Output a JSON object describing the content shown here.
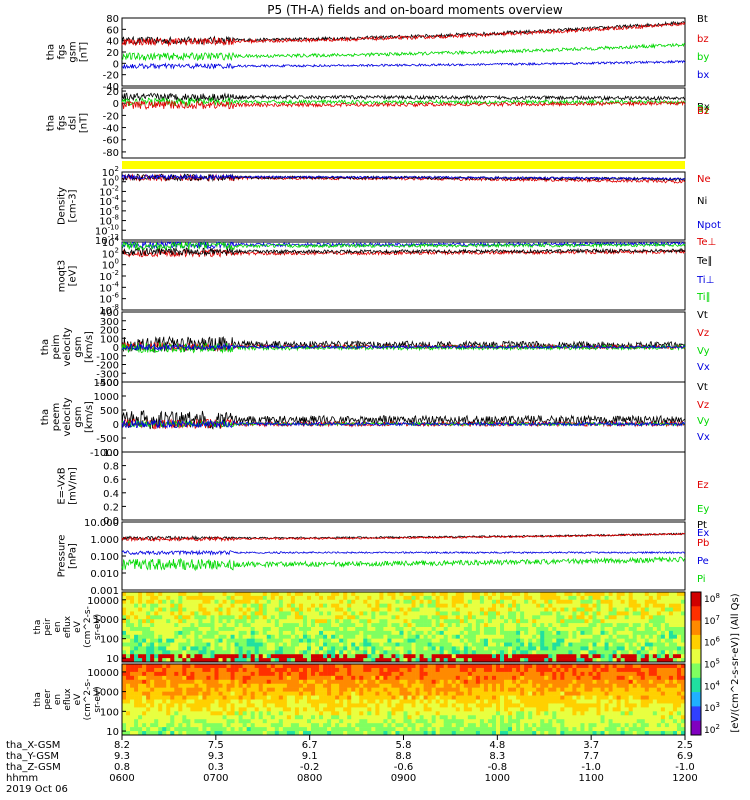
{
  "title": "P5 (TH-A) fields and on-board moments overview",
  "colors": {
    "black": "#000000",
    "red": "#e00000",
    "green": "#00d800",
    "blue": "#0000e0",
    "yellow": "#ffff00"
  },
  "chart_data": {
    "type": "line",
    "time": {
      "ticks": [
        "0600",
        "0700",
        "0800",
        "0900",
        "1000",
        "1100",
        "1200"
      ],
      "range_hours": [
        6,
        12
      ],
      "date_label": "2019 Oct 06",
      "ephemeris": [
        {
          "name": "tha_X-GSM",
          "values": [
            "8.2",
            "7.5",
            "6.7",
            "5.8",
            "4.8",
            "3.7",
            "2.5"
          ]
        },
        {
          "name": "tha_Y-GSM",
          "values": [
            "9.3",
            "9.3",
            "9.1",
            "8.8",
            "8.3",
            "7.7",
            "6.9"
          ]
        },
        {
          "name": "tha_Z-GSM",
          "values": [
            "0.8",
            "0.3",
            "-0.2",
            "-0.6",
            "-0.8",
            "-1.0",
            "-1.0"
          ]
        },
        {
          "name": "hhmm",
          "values": []
        }
      ]
    },
    "panels": [
      {
        "id": "fgs-gsm",
        "ylabel_lines": [
          "tha",
          "fgs",
          "gsm",
          "[nT]"
        ],
        "ticks": [
          "80",
          "60",
          "40",
          "20",
          "0",
          "-20",
          "-40"
        ],
        "ylim": [
          -40,
          80
        ],
        "series": [
          {
            "name": "Bt",
            "color": "#000000",
            "start": 40,
            "end": 72,
            "noise": 3
          },
          {
            "name": "bz",
            "color": "#e00000",
            "start": 38,
            "end": 70,
            "noise": 3
          },
          {
            "name": "by",
            "color": "#00d800",
            "start": 12,
            "end": 33,
            "noise": 3
          },
          {
            "name": "bx",
            "color": "#0000e0",
            "start": -5,
            "end": 3,
            "noise": 2
          }
        ]
      },
      {
        "id": "fgs-dsl",
        "ylabel_lines": [
          "tha",
          "fgs",
          "dsl",
          "[nT]"
        ],
        "ticks": [
          "20",
          "0",
          "-20",
          "-40",
          "-60",
          "-80"
        ],
        "ylim": [
          -90,
          25
        ],
        "series": [
          {
            "name": "Bx",
            "color": "#000000",
            "start": 10,
            "end": 8,
            "noise": 3
          },
          {
            "name": "By",
            "color": "#00d800",
            "start": 2,
            "end": 2,
            "noise": 3
          },
          {
            "name": "Bz",
            "color": "#e00000",
            "start": -3,
            "end": 0,
            "noise": 3
          }
        ]
      },
      {
        "id": "density",
        "ylabel_lines": [
          "Density",
          "[cm-3]"
        ],
        "log": true,
        "tick_exps": [
          2,
          0,
          -2,
          -4,
          -6,
          -8,
          -10,
          -12
        ],
        "ylim": [
          -12,
          2
        ],
        "series": [
          {
            "name": "Ne",
            "color": "#e00000",
            "start": 0.8,
            "end": 0.0,
            "noise": 0.3
          },
          {
            "name": "Ni",
            "color": "#000000",
            "start": 0.9,
            "end": 0.5,
            "noise": 0.3
          },
          {
            "name": "Npot",
            "color": "#0000e0",
            "start": 1.0,
            "end": 0.6,
            "noise": 0.2
          }
        ]
      },
      {
        "id": "temperature",
        "ylabel_lines": [
          "moqt3",
          "[eV]"
        ],
        "log": true,
        "tick_exps": [
          4,
          2,
          0,
          -2,
          -4,
          -6,
          -8
        ],
        "ylim": [
          -8,
          4
        ],
        "series": [
          {
            "name": "Te⊥",
            "color": "#e00000",
            "start": 2.0,
            "end": 2.3,
            "noise": 0.3
          },
          {
            "name": "Te∥",
            "color": "#000000",
            "start": 2.3,
            "end": 2.5,
            "noise": 0.3
          },
          {
            "name": "Ti⊥",
            "color": "#0000e0",
            "start": 3.5,
            "end": 3.7,
            "noise": 0.3
          },
          {
            "name": "Ti∥",
            "color": "#00d800",
            "start": 3.3,
            "end": 3.5,
            "noise": 0.3
          }
        ]
      },
      {
        "id": "peim-velocity",
        "ylabel_lines": [
          "tha",
          "peim",
          "velocity",
          "gsm",
          "[km/s]"
        ],
        "ticks": [
          "400",
          "300",
          "200",
          "100",
          "0",
          "-100",
          "-200",
          "-300",
          "-400"
        ],
        "ylim": [
          -400,
          400
        ],
        "series": [
          {
            "name": "Vt",
            "color": "#000000",
            "start": 30,
            "end": 20,
            "noise": 40
          },
          {
            "name": "Vz",
            "color": "#e00000",
            "start": 5,
            "end": 0,
            "noise": 20
          },
          {
            "name": "Vy",
            "color": "#00d800",
            "start": -10,
            "end": -5,
            "noise": 25
          },
          {
            "name": "Vx",
            "color": "#0000e0",
            "start": 0,
            "end": 0,
            "noise": 15
          }
        ]
      },
      {
        "id": "peem-velocity",
        "ylabel_lines": [
          "tha",
          "peem",
          "velocity",
          "gsm",
          "[km/s]"
        ],
        "ticks": [
          "1500",
          "1000",
          "500",
          "0",
          "-500",
          "-1000"
        ],
        "ylim": [
          -1000,
          1500
        ],
        "series": [
          {
            "name": "Vt",
            "color": "#000000",
            "start": 150,
            "end": 150,
            "noise": 150
          },
          {
            "name": "Vz",
            "color": "#e00000",
            "start": 0,
            "end": 0,
            "noise": 80
          },
          {
            "name": "Vy",
            "color": "#00d800",
            "start": 0,
            "end": 0,
            "noise": 50
          },
          {
            "name": "Vx",
            "color": "#0000e0",
            "start": 0,
            "end": 0,
            "noise": 60
          }
        ]
      },
      {
        "id": "efield",
        "ylabel_lines": [
          "E=-VxB",
          "[mV/m]"
        ],
        "ticks": [
          "1.0",
          "0.8",
          "0.6",
          "0.4",
          "0.2",
          "0.0"
        ],
        "ylim": [
          0,
          1
        ],
        "series": [
          {
            "name": "Ez",
            "color": "#e00000",
            "values": []
          },
          {
            "name": "Ey",
            "color": "#00d800",
            "values": []
          },
          {
            "name": "Ex",
            "color": "#0000e0",
            "values": []
          }
        ]
      },
      {
        "id": "pressure",
        "ylabel_lines": [
          "Pressure",
          "[nPa]"
        ],
        "log": true,
        "ticks": [
          "10.000",
          "1.000",
          "0.100",
          "0.010",
          "0.001"
        ],
        "ylim": [
          -3,
          1
        ],
        "series": [
          {
            "name": "Pt",
            "color": "#000000",
            "start": 0.05,
            "end": 0.3,
            "noise": 0.05
          },
          {
            "name": "Pb",
            "color": "#e00000",
            "start": 0.0,
            "end": 0.3,
            "noise": 0.05
          },
          {
            "name": "Pe",
            "color": "#0000e0",
            "start": -0.8,
            "end": -0.8,
            "noise": 0.05
          },
          {
            "name": "Pi",
            "color": "#00d800",
            "start": -1.5,
            "end": -1.2,
            "noise": 0.15
          }
        ]
      }
    ],
    "spectrograms": [
      {
        "id": "peir",
        "ylabel_lines": [
          "tha",
          "peir",
          "en",
          "eflux",
          "eV",
          "(cm^2-s-",
          "sr-eV)"
        ],
        "ticks": [
          "10000",
          "1000",
          "100",
          "10"
        ],
        "ylim_log": [
          0.8,
          4.4
        ]
      },
      {
        "id": "peer",
        "ylabel_lines": [
          "tha",
          "peer",
          "en",
          "eflux",
          "eV",
          "(cm^2-s-",
          "sr-eV)"
        ],
        "ticks": [
          "10000",
          "1000",
          "100",
          "10"
        ],
        "ylim_log": [
          0.8,
          4.4
        ]
      }
    ],
    "colorbar": {
      "label": "[eV/(cm^2-s-sr-eV)] (All Qs)",
      "tick_exps": [
        8,
        7,
        6,
        5,
        4,
        3,
        2
      ]
    }
  }
}
